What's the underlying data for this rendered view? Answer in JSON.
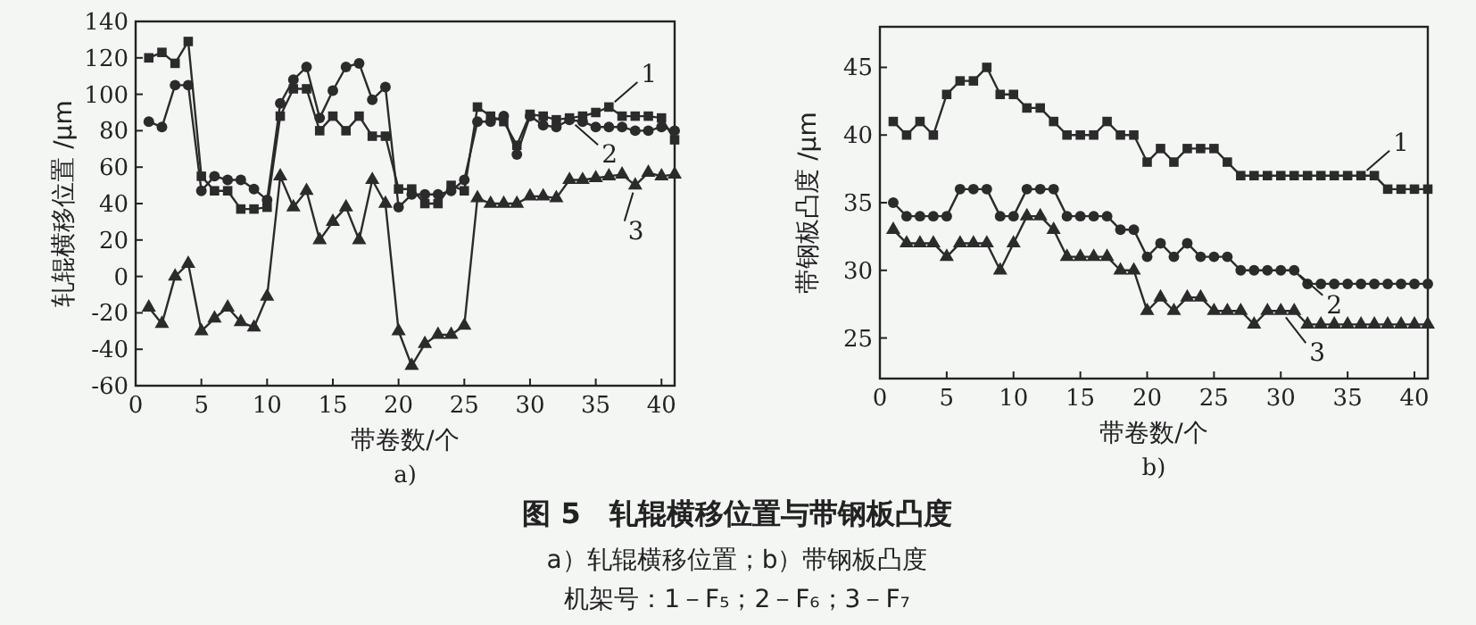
{
  "chart_data": [
    {
      "type": "line",
      "subtitle": "a)",
      "xlabel": "带卷数/个",
      "ylabel": "轧辊横移位置 /μm",
      "x": [
        1,
        2,
        3,
        4,
        5,
        6,
        7,
        8,
        9,
        10,
        11,
        12,
        13,
        14,
        15,
        16,
        17,
        18,
        19,
        20,
        21,
        22,
        23,
        24,
        25,
        26,
        27,
        28,
        29,
        30,
        31,
        32,
        33,
        34,
        35,
        36,
        37,
        38,
        39,
        40,
        41
      ],
      "xlim": [
        0,
        41
      ],
      "ylim": [
        -60,
        140
      ],
      "xticks": [
        0,
        5,
        10,
        15,
        20,
        25,
        30,
        35,
        40
      ],
      "yticks": [
        -60,
        -40,
        -20,
        0,
        20,
        40,
        60,
        80,
        100,
        120,
        140
      ],
      "series": [
        {
          "color": "#2b2b2b",
          "marker": "square",
          "values": [
            120,
            123,
            117,
            129,
            55,
            47,
            47,
            37,
            37,
            38,
            88,
            103,
            103,
            80,
            88,
            80,
            88,
            77,
            77,
            48,
            48,
            40,
            40,
            50,
            47,
            93,
            88,
            85,
            72,
            89,
            88,
            86,
            87,
            88,
            90,
            93,
            88,
            88,
            88,
            87,
            75
          ]
        },
        {
          "color": "#2b2b2b",
          "marker": "circle",
          "values": [
            85,
            82,
            105,
            105,
            47,
            55,
            53,
            53,
            48,
            42,
            95,
            108,
            115,
            87,
            102,
            115,
            117,
            97,
            104,
            38,
            45,
            45,
            45,
            47,
            53,
            85,
            85,
            88,
            67,
            88,
            83,
            82,
            86,
            85,
            82,
            82,
            82,
            80,
            80,
            82,
            80
          ]
        },
        {
          "color": "#2b2b2b",
          "marker": "triangle",
          "values": [
            -17,
            -26,
            0,
            7,
            -30,
            -23,
            -17,
            -25,
            -28,
            -11,
            55,
            38,
            47,
            20,
            30,
            38,
            20,
            53,
            40,
            -30,
            -49,
            -37,
            -32,
            -32,
            -27,
            43,
            40,
            40,
            40,
            44,
            44,
            43,
            53,
            53,
            54,
            55,
            56,
            50,
            57,
            55,
            56
          ]
        }
      ],
      "annotations": [
        {
          "text": "1",
          "x": 36,
          "y": 93
        },
        {
          "text": "2",
          "x": 33,
          "y": 86
        },
        {
          "text": "3",
          "x": 38,
          "y": 50
        }
      ]
    },
    {
      "type": "line",
      "subtitle": "b)",
      "xlabel": "带卷数/个",
      "ylabel": "带钢板凸度 /μm",
      "x": [
        1,
        2,
        3,
        4,
        5,
        6,
        7,
        8,
        9,
        10,
        11,
        12,
        13,
        14,
        15,
        16,
        17,
        18,
        19,
        20,
        21,
        22,
        23,
        24,
        25,
        26,
        27,
        28,
        29,
        30,
        31,
        32,
        33,
        34,
        35,
        36,
        37,
        38,
        39,
        40,
        41
      ],
      "xlim": [
        0,
        41
      ],
      "ylim": [
        22,
        48
      ],
      "xticks": [
        0,
        5,
        10,
        15,
        20,
        25,
        30,
        35,
        40
      ],
      "yticks": [
        25,
        30,
        35,
        40,
        45
      ],
      "series": [
        {
          "color": "#2b2b2b",
          "marker": "square",
          "values": [
            41,
            40,
            41,
            40,
            43,
            44,
            44,
            45,
            43,
            43,
            42,
            42,
            41,
            40,
            40,
            40,
            41,
            40,
            40,
            38,
            39,
            38,
            39,
            39,
            39,
            38,
            37,
            37,
            37,
            37,
            37,
            37,
            37,
            37,
            37,
            37,
            37,
            36,
            36,
            36,
            36
          ]
        },
        {
          "color": "#2b2b2b",
          "marker": "circle",
          "values": [
            35,
            34,
            34,
            34,
            34,
            36,
            36,
            36,
            34,
            34,
            36,
            36,
            36,
            34,
            34,
            34,
            34,
            33,
            33,
            31,
            32,
            31,
            32,
            31,
            31,
            31,
            30,
            30,
            30,
            30,
            30,
            29,
            29,
            29,
            29,
            29,
            29,
            29,
            29,
            29,
            29
          ]
        },
        {
          "color": "#2b2b2b",
          "marker": "triangle",
          "values": [
            33,
            32,
            32,
            32,
            31,
            32,
            32,
            32,
            30,
            32,
            34,
            34,
            33,
            31,
            31,
            31,
            31,
            30,
            30,
            27,
            28,
            27,
            28,
            28,
            27,
            27,
            27,
            26,
            27,
            27,
            27,
            26,
            26,
            26,
            26,
            26,
            26,
            26,
            26,
            26,
            26
          ]
        }
      ],
      "annotations": [
        {
          "text": "1",
          "x": 36,
          "y": 37
        },
        {
          "text": "2",
          "x": 31,
          "y": 30
        },
        {
          "text": "3",
          "x": 30,
          "y": 27
        }
      ]
    },
    {
      "type": "other",
      "title": "图 5　轧辊横移位置与带钢板凸度",
      "annotations": [
        "a）轧辊横移位置；b）带钢板凸度",
        "机架号：1－F₅；2－F₆；3－F₇"
      ]
    }
  ]
}
